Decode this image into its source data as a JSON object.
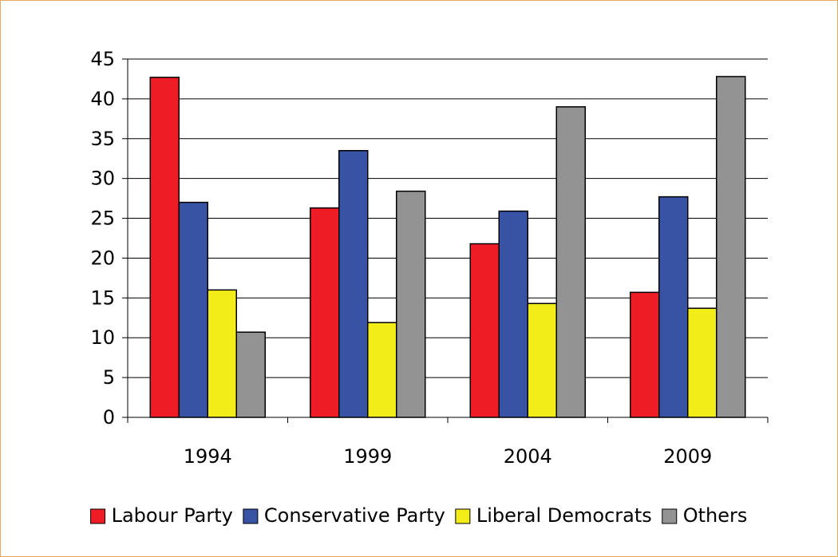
{
  "chart_data": {
    "type": "bar",
    "title": "",
    "xlabel": "",
    "ylabel": "",
    "categories": [
      "1994",
      "1999",
      "2004",
      "2009"
    ],
    "ylim": [
      0,
      45
    ],
    "yticks": [
      0,
      5,
      10,
      15,
      20,
      25,
      30,
      35,
      40,
      45
    ],
    "grid": true,
    "legend_position": "bottom",
    "series": [
      {
        "name": "Labour Party",
        "color": "#ee1c25",
        "values": [
          42.7,
          26.3,
          21.8,
          15.7
        ]
      },
      {
        "name": "Conservative Party",
        "color": "#3953a4",
        "values": [
          27.0,
          33.5,
          25.9,
          27.7
        ]
      },
      {
        "name": "Liberal Democrats",
        "color": "#f2ec19",
        "values": [
          16.0,
          11.9,
          14.3,
          13.7
        ]
      },
      {
        "name": "Others",
        "color": "#939393",
        "values": [
          10.7,
          28.4,
          39.0,
          42.8
        ]
      }
    ]
  }
}
